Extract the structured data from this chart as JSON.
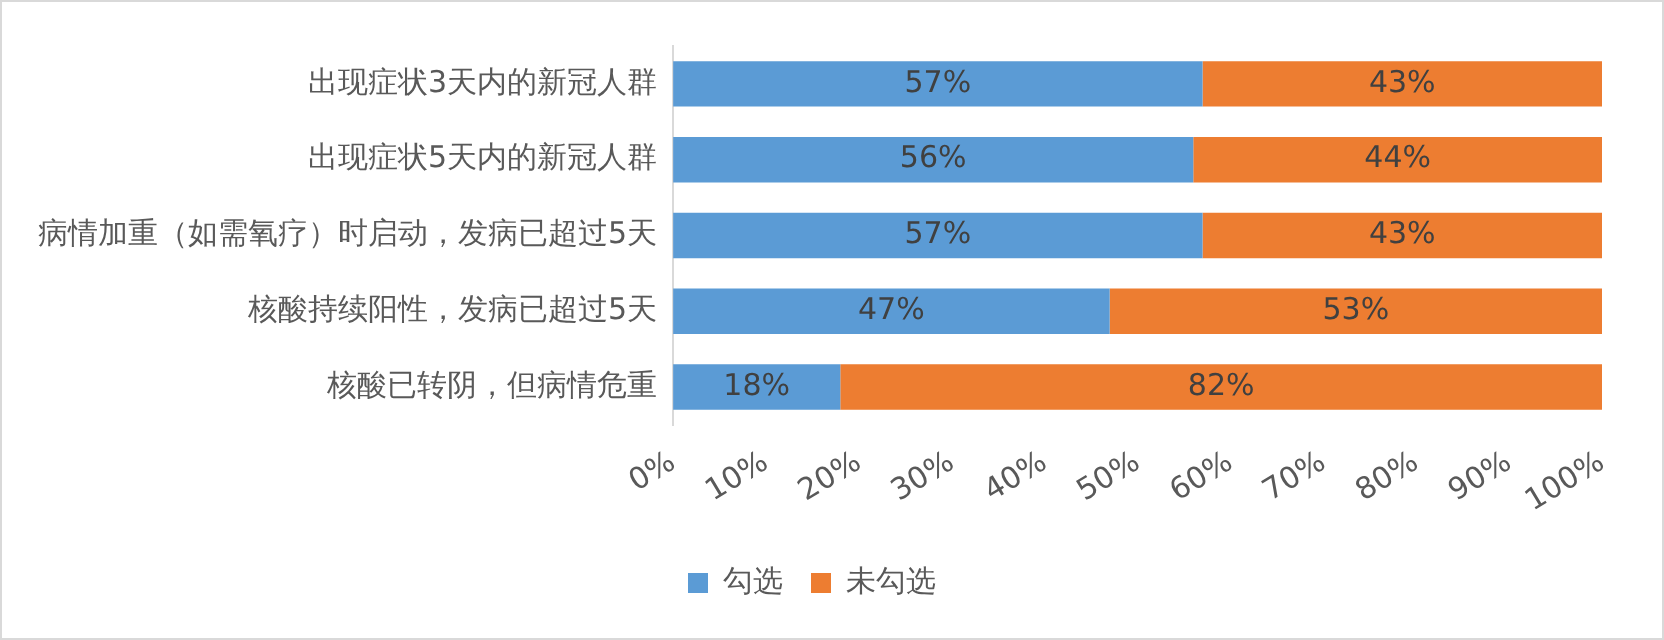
{
  "chart_data": {
    "type": "bar",
    "orientation": "horizontal",
    "stacked": true,
    "categories": [
      "出现症状3天内的新冠人群",
      "出现症状5天内的新冠人群",
      "病情加重（如需氧疗）时启动，发病已超过5天",
      "核酸持续阳性，发病已超过5天",
      "核酸已转阴，但病情危重"
    ],
    "series": [
      {
        "name": "勾选",
        "color": "#5b9bd5",
        "values": [
          57,
          56,
          57,
          47,
          18
        ],
        "value_labels": [
          "57%",
          "56%",
          "57%",
          "47%",
          "18%"
        ]
      },
      {
        "name": "未勾选",
        "color": "#ed7d31",
        "values": [
          43,
          44,
          43,
          53,
          82
        ],
        "value_labels": [
          "43%",
          "44%",
          "43%",
          "53%",
          "82%"
        ]
      }
    ],
    "xlim": [
      0,
      100
    ],
    "xticks": [
      {
        "value": 0,
        "label": "0%"
      },
      {
        "value": 10,
        "label": "10%"
      },
      {
        "value": 20,
        "label": "20%"
      },
      {
        "value": 30,
        "label": "30%"
      },
      {
        "value": 40,
        "label": "40%"
      },
      {
        "value": 50,
        "label": "50%"
      },
      {
        "value": 60,
        "label": "60%"
      },
      {
        "value": 70,
        "label": "70%"
      },
      {
        "value": 80,
        "label": "80%"
      },
      {
        "value": 90,
        "label": "90%"
      },
      {
        "value": 100,
        "label": "100%"
      }
    ],
    "grid": false,
    "legend": "bottom"
  }
}
